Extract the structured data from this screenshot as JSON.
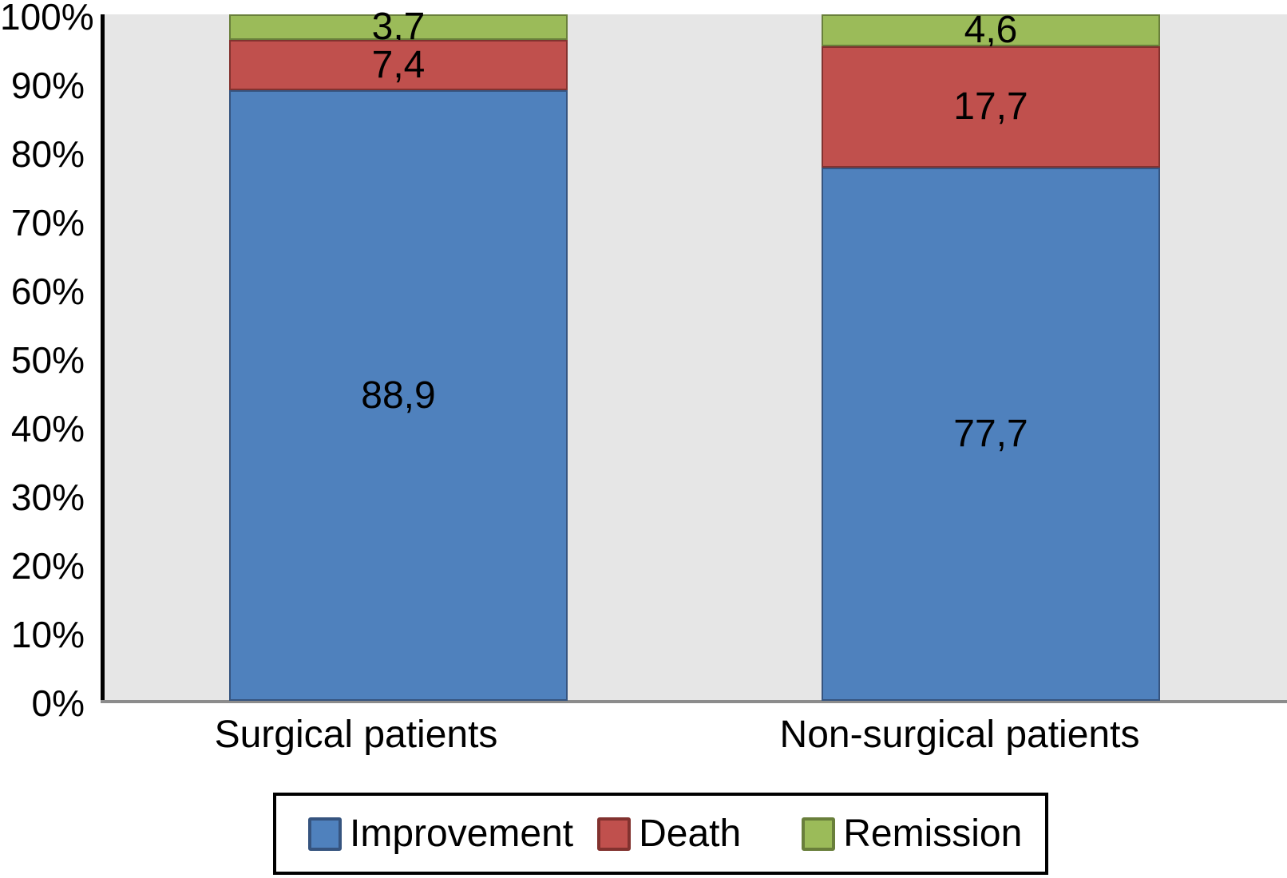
{
  "chart_data": {
    "type": "bar",
    "stacked": true,
    "percent_stacked": true,
    "title": "",
    "xlabel": "",
    "ylabel": "",
    "ylim": [
      0,
      100
    ],
    "yticks": [
      "0%",
      "10%",
      "20%",
      "30%",
      "40%",
      "50%",
      "60%",
      "70%",
      "80%",
      "90%",
      "100%"
    ],
    "grid": false,
    "plot_background": "#E6E6E6",
    "axis_color": "#000000",
    "baseline_color": "#8C8C8C",
    "legend_position": "bottom",
    "decimal_separator": ",",
    "categories": [
      "Surgical patients",
      "Non-surgical patients"
    ],
    "series": [
      {
        "name": "Improvement",
        "color": "#4F81BD",
        "border_color": "#36547F",
        "values": [
          88.9,
          77.7
        ],
        "labels": [
          "88,9",
          "77,7"
        ]
      },
      {
        "name": "Death",
        "color": "#C0504D",
        "border_color": "#82322F",
        "values": [
          7.4,
          17.7
        ],
        "labels": [
          "7,4",
          "17,7"
        ]
      },
      {
        "name": "Remission",
        "color": "#9BBB59",
        "border_color": "#697F3B",
        "values": [
          3.7,
          4.6
        ],
        "labels": [
          "3,7",
          "4,6"
        ]
      }
    ]
  }
}
